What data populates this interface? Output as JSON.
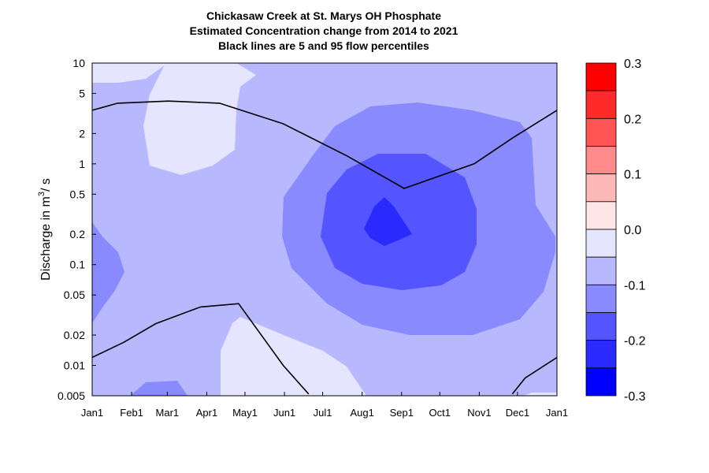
{
  "chart_data": {
    "type": "heatmap",
    "title_lines": [
      "Chickasaw Creek at St. Marys OH  Phosphate",
      "Estimated Concentration change from 2014 to 2021",
      "Black lines are 5 and 95 flow percentiles"
    ],
    "xlabel": "",
    "ylabel_prefix": "Discharge in m",
    "ylabel_sup": "3",
    "ylabel_suffix": "/ s",
    "y_scale": "log",
    "ylim": [
      0.005,
      10
    ],
    "x_ticks": [
      "Jan1",
      "Feb1",
      "Mar1",
      "Apr1",
      "May1",
      "Jun1",
      "Jul1",
      "Aug1",
      "Sep1",
      "Oct1",
      "Nov1",
      "Dec1",
      "Jan1"
    ],
    "x_tick_days": [
      0,
      31,
      59,
      90,
      120,
      151,
      181,
      212,
      243,
      273,
      304,
      334,
      365
    ],
    "y_ticks": [
      {
        "value": 10,
        "label": "10"
      },
      {
        "value": 5,
        "label": "5"
      },
      {
        "value": 2,
        "label": "2"
      },
      {
        "value": 1,
        "label": "1"
      },
      {
        "value": 0.5,
        "label": "0.5"
      },
      {
        "value": 0.2,
        "label": "0.2"
      },
      {
        "value": 0.1,
        "label": "0.1"
      },
      {
        "value": 0.05,
        "label": "0.05"
      },
      {
        "value": 0.02,
        "label": "0.02"
      },
      {
        "value": 0.01,
        "label": "0.01"
      },
      {
        "value": 0.005,
        "label": "0.005"
      }
    ],
    "colorbar": {
      "ticks": [
        {
          "value": 0.3,
          "label": "0.3"
        },
        {
          "value": 0.2,
          "label": "0.2"
        },
        {
          "value": 0.1,
          "label": "0.1"
        },
        {
          "value": 0.0,
          "label": "0.0"
        },
        {
          "value": -0.1,
          "label": "-0.1"
        },
        {
          "value": -0.2,
          "label": "-0.2"
        },
        {
          "value": -0.3,
          "label": "-0.3"
        }
      ],
      "bands": [
        {
          "from": 0.25,
          "to": 0.3,
          "color": "#ff0000"
        },
        {
          "from": 0.2,
          "to": 0.25,
          "color": "#ff2a2a"
        },
        {
          "from": 0.15,
          "to": 0.2,
          "color": "#ff5555"
        },
        {
          "from": 0.1,
          "to": 0.15,
          "color": "#ff8a8a"
        },
        {
          "from": 0.05,
          "to": 0.1,
          "color": "#ffb8b8"
        },
        {
          "from": 0.0,
          "to": 0.05,
          "color": "#ffe5e5"
        },
        {
          "from": -0.05,
          "to": 0.0,
          "color": "#e5e5ff"
        },
        {
          "from": -0.1,
          "to": -0.05,
          "color": "#b8b8ff"
        },
        {
          "from": -0.15,
          "to": -0.1,
          "color": "#8a8aff"
        },
        {
          "from": -0.2,
          "to": -0.15,
          "color": "#5555ff"
        },
        {
          "from": -0.25,
          "to": -0.2,
          "color": "#2a2aff"
        },
        {
          "from": -0.3,
          "to": -0.25,
          "color": "#0000ff"
        }
      ]
    },
    "contour_fill_colors": {
      "background": "#b8b8ff",
      "lighter": "#e5e5ff",
      "medium": "#8a8aff",
      "darker": "#5555ff",
      "darkest": "#2a2aff"
    },
    "flow_percentile_lines": [
      {
        "percentile": 95,
        "points": [
          [
            0,
            3.4
          ],
          [
            20,
            4.0
          ],
          [
            60,
            4.2
          ],
          [
            100,
            4.0
          ],
          [
            150,
            2.5
          ],
          [
            200,
            1.2
          ],
          [
            245,
            0.57
          ],
          [
            300,
            1.0
          ],
          [
            330,
            1.8
          ],
          [
            365,
            3.4
          ]
        ]
      },
      {
        "percentile": 5,
        "points": [
          [
            0,
            0.012
          ],
          [
            25,
            0.017
          ],
          [
            50,
            0.026
          ],
          [
            85,
            0.038
          ],
          [
            115,
            0.041
          ],
          [
            150,
            0.01
          ],
          [
            170,
            0.0052
          ]
        ],
        "tail": [
          [
            330,
            0.0052
          ],
          [
            340,
            0.0075
          ],
          [
            365,
            0.012
          ]
        ]
      }
    ]
  }
}
